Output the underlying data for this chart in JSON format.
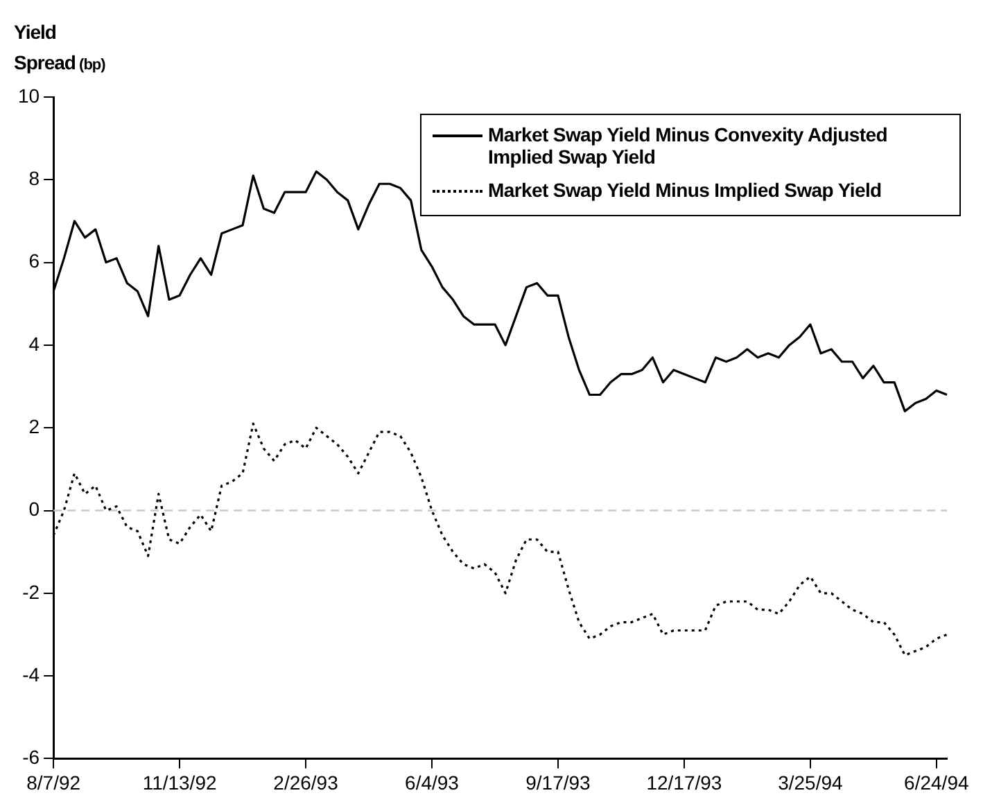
{
  "chart_data": {
    "type": "line",
    "ylabel": "Yield Spread (bp)",
    "categories": [
      "8/7/92",
      null,
      null,
      null,
      null,
      null,
      null,
      null,
      null,
      null,
      null,
      null,
      "11/13/92",
      null,
      null,
      null,
      null,
      null,
      null,
      null,
      null,
      null,
      null,
      null,
      "2/26/93",
      null,
      null,
      null,
      null,
      null,
      null,
      null,
      null,
      null,
      null,
      null,
      "6/4/93",
      null,
      null,
      null,
      null,
      null,
      null,
      null,
      null,
      null,
      null,
      null,
      "9/17/93",
      null,
      null,
      null,
      null,
      null,
      null,
      null,
      null,
      null,
      null,
      null,
      "12/17/93",
      null,
      null,
      null,
      null,
      null,
      null,
      null,
      null,
      null,
      null,
      null,
      "3/25/94",
      null,
      null,
      null,
      null,
      null,
      null,
      null,
      null,
      null,
      null,
      null,
      "6/24/94",
      null
    ],
    "series": [
      {
        "name": "Market Swap Yield Minus Convexity Adjusted Implied Swap Yield",
        "color": "#000000",
        "line_style": "solid",
        "values": [
          5.3,
          6.1,
          7.0,
          6.6,
          6.8,
          6.0,
          6.1,
          5.5,
          5.3,
          4.7,
          6.4,
          5.1,
          5.2,
          5.7,
          6.1,
          5.7,
          6.7,
          6.8,
          6.9,
          8.1,
          7.3,
          7.2,
          7.7,
          7.7,
          7.7,
          8.2,
          8.0,
          7.7,
          7.5,
          6.8,
          7.4,
          7.9,
          7.9,
          7.8,
          7.5,
          6.3,
          5.9,
          5.4,
          5.1,
          4.7,
          4.5,
          4.5,
          4.5,
          4.0,
          4.7,
          5.4,
          5.5,
          5.2,
          5.2,
          4.2,
          3.4,
          2.8,
          2.8,
          3.1,
          3.3,
          3.3,
          3.4,
          3.7,
          3.1,
          3.4,
          3.3,
          3.2,
          3.1,
          3.7,
          3.6,
          3.7,
          3.9,
          3.7,
          3.8,
          3.7,
          4.0,
          4.2,
          4.5,
          3.8,
          3.9,
          3.6,
          3.6,
          3.2,
          3.5,
          3.1,
          3.1,
          2.4,
          2.6,
          2.7,
          2.9,
          2.8
        ]
      },
      {
        "name": "Market Swap Yield Minus Implied Swap Yield",
        "color": "#000000",
        "line_style": "dotted",
        "values": [
          -0.6,
          0.0,
          0.9,
          0.4,
          0.6,
          0.0,
          0.1,
          -0.4,
          -0.5,
          -1.1,
          0.4,
          -0.7,
          -0.8,
          -0.4,
          -0.1,
          -0.5,
          0.6,
          0.7,
          0.9,
          2.1,
          1.5,
          1.2,
          1.6,
          1.7,
          1.5,
          2.0,
          1.8,
          1.6,
          1.3,
          0.9,
          1.4,
          1.9,
          1.9,
          1.8,
          1.4,
          0.8,
          0.0,
          -0.6,
          -1.0,
          -1.3,
          -1.4,
          -1.3,
          -1.5,
          -2.0,
          -1.2,
          -0.7,
          -0.7,
          -1.0,
          -1.0,
          -1.9,
          -2.7,
          -3.1,
          -3.0,
          -2.8,
          -2.7,
          -2.7,
          -2.6,
          -2.5,
          -3.0,
          -2.9,
          -2.9,
          -2.9,
          -2.9,
          -2.3,
          -2.2,
          -2.2,
          -2.2,
          -2.4,
          -2.4,
          -2.5,
          -2.2,
          -1.8,
          -1.6,
          -2.0,
          -2.0,
          -2.2,
          -2.4,
          -2.5,
          -2.7,
          -2.7,
          -3.0,
          -3.5,
          -3.4,
          -3.3,
          -3.1,
          -3.0
        ]
      }
    ],
    "ylim": [
      -6,
      10
    ],
    "yticks": [
      -6,
      -4,
      -2,
      0,
      2,
      4,
      6,
      8,
      10
    ],
    "ref_lines": [
      {
        "axis": "y",
        "value": 0,
        "color": "#c8c8c8",
        "line_style": "dashed"
      }
    ],
    "grid": false,
    "legend": "top right",
    "marker": "none"
  }
}
